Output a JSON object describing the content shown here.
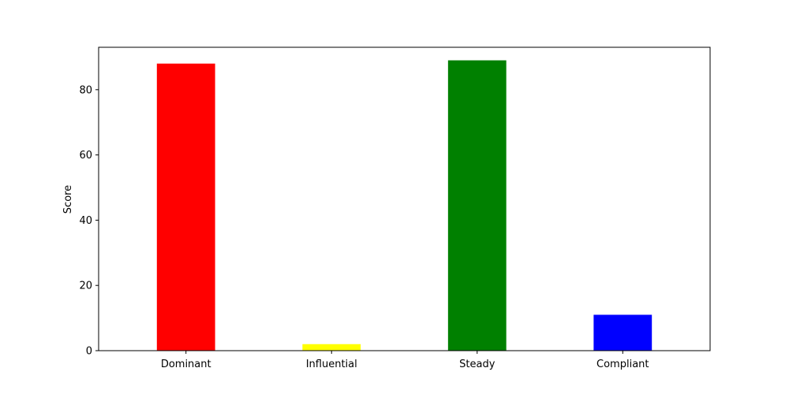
{
  "chart_data": {
    "type": "bar",
    "title": "",
    "xlabel": "",
    "ylabel": "Score",
    "categories": [
      "Dominant",
      "Influential",
      "Steady",
      "Compliant"
    ],
    "values": [
      88,
      2,
      89,
      11
    ],
    "colors": [
      "#ff0000",
      "#ffff00",
      "#008000",
      "#0000ff"
    ],
    "ylim": [
      0,
      93
    ],
    "yticks": [
      0,
      20,
      40,
      60,
      80
    ],
    "grid": false,
    "legend": "none"
  }
}
